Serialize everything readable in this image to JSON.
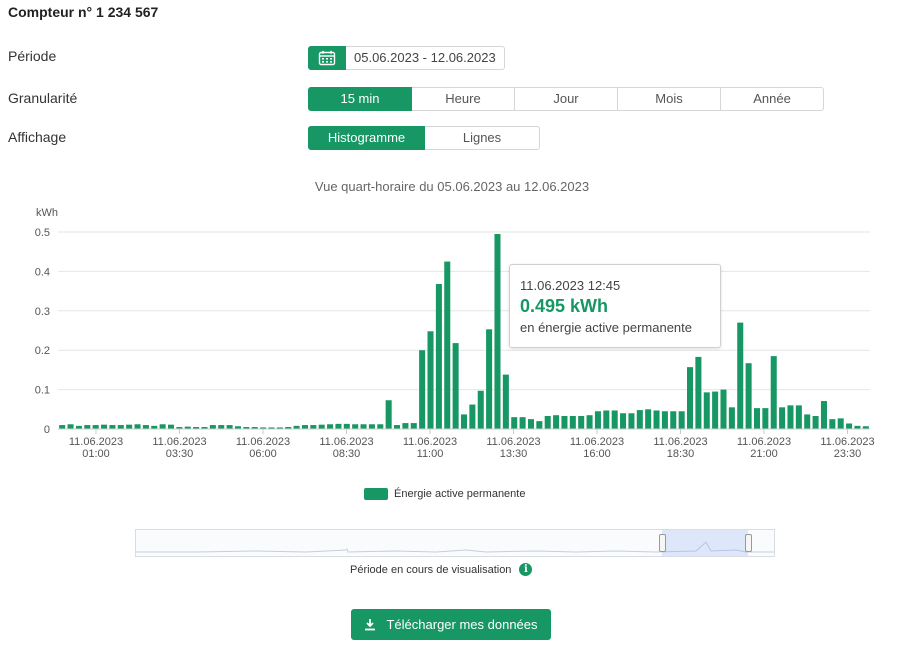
{
  "header": {
    "title": "Compteur n° 1 234 567"
  },
  "filters": {
    "periode_label": "Période",
    "period_value": "05.06.2023 - 12.06.2023",
    "granularite_label": "Granularité",
    "granularity_options": [
      "15 min",
      "Heure",
      "Jour",
      "Mois",
      "Année"
    ],
    "granularity_selected": "15 min",
    "affichage_label": "Affichage",
    "display_options": [
      "Histogramme",
      "Lignes"
    ],
    "display_selected": "Histogramme"
  },
  "chart_data": {
    "type": "bar",
    "title": "Vue quart-horaire du 05.06.2023 au 12.06.2023",
    "ylabel": "kWh",
    "ylim": [
      0,
      0.5
    ],
    "yticks": [
      0,
      0.1,
      0.2,
      0.3,
      0.4,
      0.5
    ],
    "ytick_labels": [
      "0",
      "0.1",
      "0.2",
      "0.3",
      "0.4",
      "0.5"
    ],
    "xtick_labels": [
      [
        "11.06.2023",
        "01:00"
      ],
      [
        "11.06.2023",
        "03:30"
      ],
      [
        "11.06.2023",
        "06:00"
      ],
      [
        "11.06.2023",
        "08:30"
      ],
      [
        "11.06.2023",
        "11:00"
      ],
      [
        "11.06.2023",
        "13:30"
      ],
      [
        "11.06.2023",
        "16:00"
      ],
      [
        "11.06.2023",
        "18:30"
      ],
      [
        "11.06.2023",
        "21:00"
      ],
      [
        "11.06.2023",
        "23:30"
      ]
    ],
    "grid": true,
    "legend_position": "bottom",
    "series": [
      {
        "name": "Énergie active permanente",
        "color": "#169764",
        "values": [
          0.01,
          0.012,
          0.008,
          0.01,
          0.01,
          0.011,
          0.01,
          0.01,
          0.011,
          0.012,
          0.01,
          0.008,
          0.012,
          0.011,
          0.005,
          0.006,
          0.005,
          0.005,
          0.01,
          0.01,
          0.01,
          0.007,
          0.005,
          0.005,
          0.004,
          0.004,
          0.004,
          0.005,
          0.008,
          0.01,
          0.01,
          0.011,
          0.012,
          0.013,
          0.013,
          0.012,
          0.012,
          0.012,
          0.012,
          0.073,
          0.01,
          0.015,
          0.015,
          0.2,
          0.248,
          0.368,
          0.425,
          0.218,
          0.037,
          0.062,
          0.097,
          0.253,
          0.495,
          0.138,
          0.03,
          0.03,
          0.025,
          0.02,
          0.033,
          0.035,
          0.033,
          0.033,
          0.033,
          0.035,
          0.045,
          0.047,
          0.047,
          0.04,
          0.04,
          0.048,
          0.05,
          0.047,
          0.045,
          0.045,
          0.045,
          0.157,
          0.183,
          0.093,
          0.095,
          0.1,
          0.055,
          0.27,
          0.167,
          0.053,
          0.053,
          0.185,
          0.055,
          0.06,
          0.06,
          0.037,
          0.033,
          0.071,
          0.025,
          0.027,
          0.014,
          0.008,
          0.007
        ]
      }
    ],
    "tooltip": {
      "date": "11.06.2023 12:45",
      "value": "0.495 kWh",
      "series_label": "en énergie active permanente"
    }
  },
  "navigator": {
    "caption": "Période en cours de visualisation",
    "selection_fraction": [
      0.825,
      0.96
    ]
  },
  "actions": {
    "download_label": "Télécharger mes données"
  },
  "colors": {
    "accent": "#169764"
  }
}
